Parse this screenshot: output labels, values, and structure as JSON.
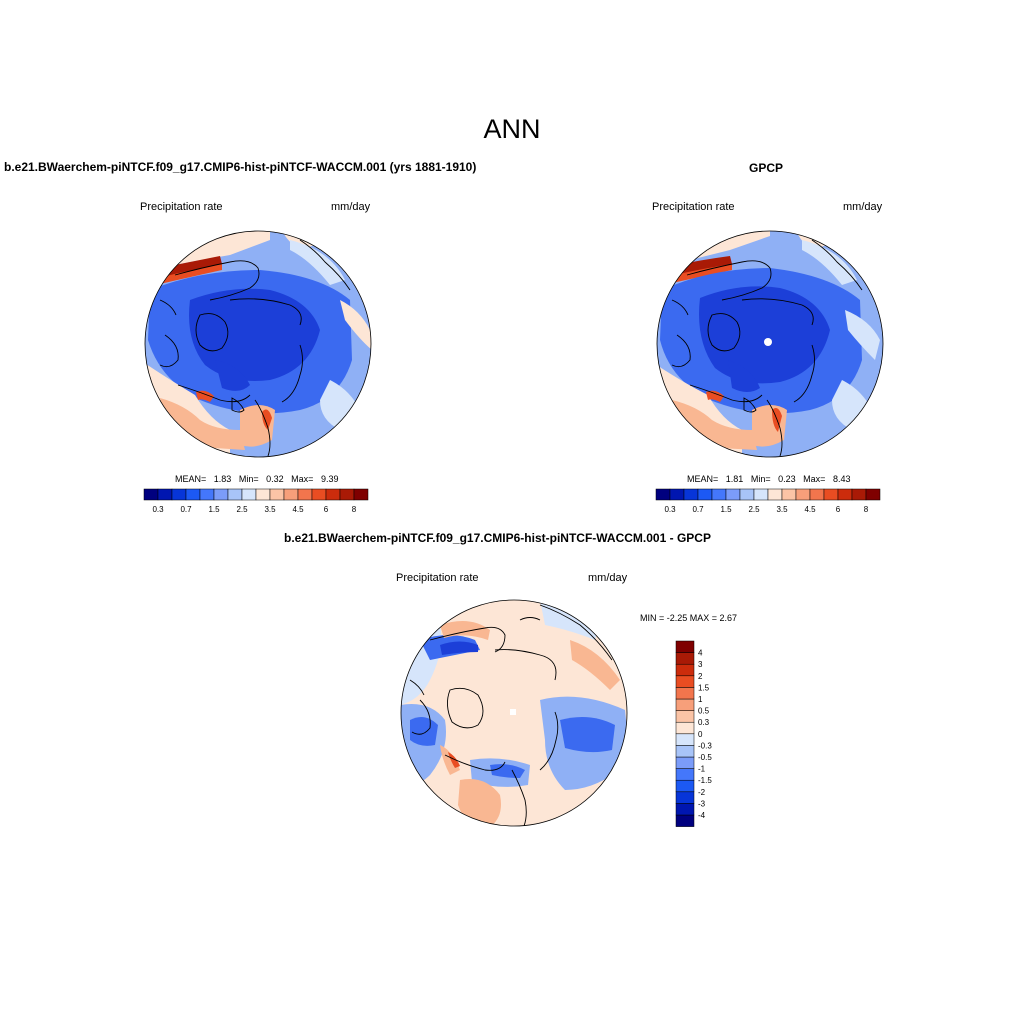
{
  "main_title": "ANN",
  "panels": [
    {
      "id": "model",
      "title": "b.e21.BWaerchem-piNTCF.f09_g17.CMIP6-hist-piNTCF-WACCM.001 (yrs 1881-1910)",
      "left_label": "Precipitation rate",
      "right_label": "mm/day",
      "stats": {
        "mean_label": "MEAN=",
        "mean": "1.83",
        "min_label": "Min=",
        "min": "0.32",
        "max_label": "Max=",
        "max": "9.39"
      }
    },
    {
      "id": "obs",
      "title": "GPCP",
      "left_label": "Precipitation rate",
      "right_label": "mm/day",
      "stats": {
        "mean_label": "MEAN=",
        "mean": "1.81",
        "min_label": "Min=",
        "min": "0.23",
        "max_label": "Max=",
        "max": "8.43"
      }
    },
    {
      "id": "diff",
      "title": "b.e21.BWaerchem-piNTCF.f09_g17.CMIP6-hist-piNTCF-WACCM.001 - GPCP",
      "left_label": "Precipitation rate",
      "right_label": "mm/day",
      "stats_text": "MIN =  -2.25 MAX =   2.67"
    }
  ],
  "abs_colorbar": {
    "colors": [
      "#00007f",
      "#0016b0",
      "#0735d8",
      "#1c59f4",
      "#4477fb",
      "#7b9cf9",
      "#a8c4f8",
      "#d6e5fb",
      "#fde6d6",
      "#fbc4a6",
      "#f79f7a",
      "#f2754d",
      "#e94d22",
      "#cc2c0c",
      "#a91a06",
      "#7f0000"
    ],
    "tick_labels": [
      "0.3",
      "0.7",
      "1.5",
      "2.5",
      "3.5",
      "4.5",
      "6",
      "8"
    ]
  },
  "diff_colorbar": {
    "colors": [
      "#00007f",
      "#0016b0",
      "#0735d8",
      "#1c59f4",
      "#4477fb",
      "#7b9cf9",
      "#a8c4f8",
      "#d6e5fb",
      "#fde6d6",
      "#fbc4a6",
      "#f79f7a",
      "#f2754d",
      "#e94d22",
      "#cc2c0c",
      "#a91a06",
      "#7f0000"
    ],
    "tick_labels": [
      "-4",
      "-3",
      "-2",
      "-1.5",
      "-1",
      "-0.5",
      "-0.3",
      "0",
      "0.3",
      "0.5",
      "1",
      "1.5",
      "2",
      "3",
      "4"
    ]
  },
  "map_palette": {
    "land_outline": "#000000",
    "deep_blue": "#1c3fd8",
    "mid_blue": "#3b6af0",
    "light_blue": "#8fb0f5",
    "pale_blue": "#d6e5fb",
    "pale_red": "#fde6d6",
    "light_red": "#f9b792",
    "red": "#e94d22",
    "dark_red": "#a91a06"
  }
}
